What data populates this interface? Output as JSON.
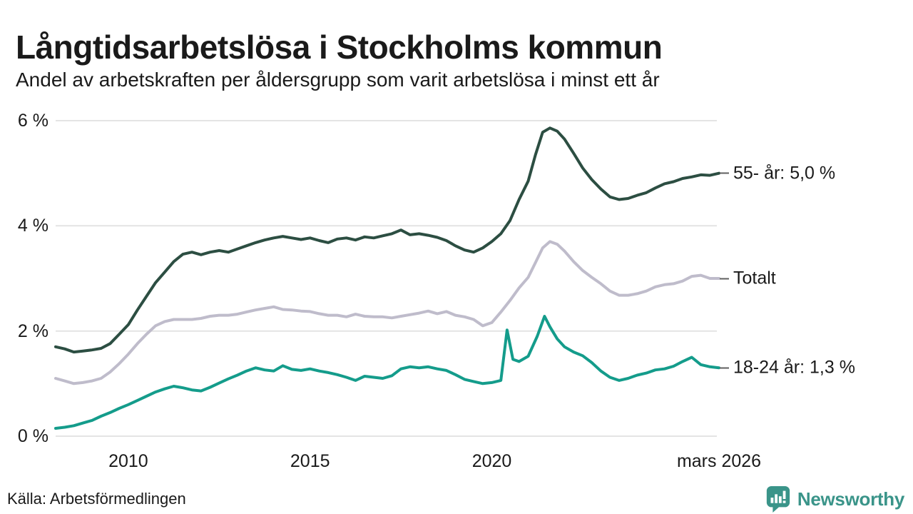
{
  "header": {
    "title": "Långtidsarbetslösa i Stockholms kommun",
    "subtitle": "Andel av arbetskraften per åldersgrupp som varit arbetslösa i minst ett år"
  },
  "footer": {
    "source": "Källa: Arbetsförmedlingen",
    "brand": "Newsworthy"
  },
  "colors": {
    "grid": "#e4e4e4",
    "text": "#1a1a1a",
    "label_dash": "#5f5f5f",
    "brand_teal": "#3a9489"
  },
  "chart_data": {
    "type": "line",
    "title": "Långtidsarbetslösa i Stockholms kommun",
    "subtitle": "Andel av arbetskraften per åldersgrupp som varit arbetslösa i minst ett år",
    "unit": "%",
    "grid": true,
    "legend_position": "right-end-labels",
    "x_range": [
      2008,
      2026.25
    ],
    "y_range": [
      0,
      6
    ],
    "x_ticks": [
      {
        "label": "2010",
        "x": 2010
      },
      {
        "label": "2015",
        "x": 2015
      },
      {
        "label": "2020",
        "x": 2020
      },
      {
        "label": "mars 2026",
        "x": 2026.25
      }
    ],
    "y_ticks": [
      {
        "label": "0 %",
        "value": 0
      },
      {
        "label": "2 %",
        "value": 2
      },
      {
        "label": "4 %",
        "value": 4
      },
      {
        "label": "6 %",
        "value": 6
      }
    ],
    "series": [
      {
        "name": "55- år",
        "end_label": "55- år: 5,0 %",
        "end_value": 5.0,
        "color": "#2c4e42",
        "points": [
          [
            2008.0,
            1.7
          ],
          [
            2008.25,
            1.66
          ],
          [
            2008.5,
            1.6
          ],
          [
            2008.75,
            1.62
          ],
          [
            2009.0,
            1.64
          ],
          [
            2009.25,
            1.67
          ],
          [
            2009.5,
            1.76
          ],
          [
            2009.75,
            1.94
          ],
          [
            2010.0,
            2.12
          ],
          [
            2010.25,
            2.4
          ],
          [
            2010.5,
            2.66
          ],
          [
            2010.75,
            2.92
          ],
          [
            2011.0,
            3.12
          ],
          [
            2011.25,
            3.32
          ],
          [
            2011.5,
            3.46
          ],
          [
            2011.75,
            3.5
          ],
          [
            2012.0,
            3.45
          ],
          [
            2012.25,
            3.5
          ],
          [
            2012.5,
            3.53
          ],
          [
            2012.75,
            3.5
          ],
          [
            2013.0,
            3.56
          ],
          [
            2013.25,
            3.62
          ],
          [
            2013.5,
            3.68
          ],
          [
            2013.75,
            3.73
          ],
          [
            2014.0,
            3.77
          ],
          [
            2014.25,
            3.8
          ],
          [
            2014.5,
            3.77
          ],
          [
            2014.75,
            3.74
          ],
          [
            2015.0,
            3.77
          ],
          [
            2015.25,
            3.72
          ],
          [
            2015.5,
            3.68
          ],
          [
            2015.75,
            3.75
          ],
          [
            2016.0,
            3.77
          ],
          [
            2016.25,
            3.73
          ],
          [
            2016.5,
            3.79
          ],
          [
            2016.75,
            3.77
          ],
          [
            2017.0,
            3.81
          ],
          [
            2017.25,
            3.85
          ],
          [
            2017.5,
            3.92
          ],
          [
            2017.75,
            3.83
          ],
          [
            2018.0,
            3.85
          ],
          [
            2018.25,
            3.82
          ],
          [
            2018.5,
            3.78
          ],
          [
            2018.75,
            3.72
          ],
          [
            2019.0,
            3.62
          ],
          [
            2019.25,
            3.54
          ],
          [
            2019.5,
            3.5
          ],
          [
            2019.75,
            3.58
          ],
          [
            2020.0,
            3.7
          ],
          [
            2020.25,
            3.85
          ],
          [
            2020.5,
            4.1
          ],
          [
            2020.75,
            4.5
          ],
          [
            2021.0,
            4.85
          ],
          [
            2021.2,
            5.35
          ],
          [
            2021.4,
            5.78
          ],
          [
            2021.6,
            5.86
          ],
          [
            2021.8,
            5.8
          ],
          [
            2022.0,
            5.65
          ],
          [
            2022.25,
            5.38
          ],
          [
            2022.5,
            5.1
          ],
          [
            2022.75,
            4.88
          ],
          [
            2023.0,
            4.7
          ],
          [
            2023.25,
            4.55
          ],
          [
            2023.5,
            4.5
          ],
          [
            2023.75,
            4.52
          ],
          [
            2024.0,
            4.58
          ],
          [
            2024.25,
            4.63
          ],
          [
            2024.5,
            4.72
          ],
          [
            2024.75,
            4.8
          ],
          [
            2025.0,
            4.84
          ],
          [
            2025.25,
            4.9
          ],
          [
            2025.5,
            4.93
          ],
          [
            2025.75,
            4.97
          ],
          [
            2026.0,
            4.96
          ],
          [
            2026.25,
            5.0
          ]
        ]
      },
      {
        "name": "Totalt",
        "end_label": "Totalt",
        "end_value": 3.0,
        "color": "#bfbccb",
        "points": [
          [
            2008.0,
            1.1
          ],
          [
            2008.25,
            1.05
          ],
          [
            2008.5,
            1.0
          ],
          [
            2008.75,
            1.02
          ],
          [
            2009.0,
            1.05
          ],
          [
            2009.25,
            1.1
          ],
          [
            2009.5,
            1.22
          ],
          [
            2009.75,
            1.38
          ],
          [
            2010.0,
            1.56
          ],
          [
            2010.25,
            1.76
          ],
          [
            2010.5,
            1.94
          ],
          [
            2010.75,
            2.1
          ],
          [
            2011.0,
            2.18
          ],
          [
            2011.25,
            2.22
          ],
          [
            2011.5,
            2.22
          ],
          [
            2011.75,
            2.22
          ],
          [
            2012.0,
            2.24
          ],
          [
            2012.25,
            2.28
          ],
          [
            2012.5,
            2.3
          ],
          [
            2012.75,
            2.3
          ],
          [
            2013.0,
            2.32
          ],
          [
            2013.25,
            2.36
          ],
          [
            2013.5,
            2.4
          ],
          [
            2013.75,
            2.43
          ],
          [
            2014.0,
            2.46
          ],
          [
            2014.25,
            2.41
          ],
          [
            2014.5,
            2.4
          ],
          [
            2014.75,
            2.38
          ],
          [
            2015.0,
            2.37
          ],
          [
            2015.25,
            2.33
          ],
          [
            2015.5,
            2.3
          ],
          [
            2015.75,
            2.3
          ],
          [
            2016.0,
            2.27
          ],
          [
            2016.25,
            2.32
          ],
          [
            2016.5,
            2.28
          ],
          [
            2016.75,
            2.27
          ],
          [
            2017.0,
            2.27
          ],
          [
            2017.25,
            2.25
          ],
          [
            2017.5,
            2.28
          ],
          [
            2017.75,
            2.31
          ],
          [
            2018.0,
            2.34
          ],
          [
            2018.25,
            2.38
          ],
          [
            2018.5,
            2.33
          ],
          [
            2018.75,
            2.37
          ],
          [
            2019.0,
            2.3
          ],
          [
            2019.25,
            2.27
          ],
          [
            2019.5,
            2.22
          ],
          [
            2019.75,
            2.1
          ],
          [
            2020.0,
            2.16
          ],
          [
            2020.25,
            2.36
          ],
          [
            2020.5,
            2.58
          ],
          [
            2020.75,
            2.82
          ],
          [
            2021.0,
            3.02
          ],
          [
            2021.2,
            3.3
          ],
          [
            2021.4,
            3.58
          ],
          [
            2021.6,
            3.7
          ],
          [
            2021.8,
            3.65
          ],
          [
            2022.0,
            3.52
          ],
          [
            2022.25,
            3.32
          ],
          [
            2022.5,
            3.15
          ],
          [
            2022.75,
            3.02
          ],
          [
            2023.0,
            2.9
          ],
          [
            2023.25,
            2.76
          ],
          [
            2023.5,
            2.68
          ],
          [
            2023.75,
            2.68
          ],
          [
            2024.0,
            2.71
          ],
          [
            2024.25,
            2.76
          ],
          [
            2024.5,
            2.84
          ],
          [
            2024.75,
            2.88
          ],
          [
            2025.0,
            2.9
          ],
          [
            2025.25,
            2.95
          ],
          [
            2025.5,
            3.04
          ],
          [
            2025.75,
            3.06
          ],
          [
            2026.0,
            3.0
          ],
          [
            2026.25,
            3.0
          ]
        ]
      },
      {
        "name": "18-24 år",
        "end_label": "18-24 år: 1,3 %",
        "end_value": 1.3,
        "color": "#149c8b",
        "points": [
          [
            2008.0,
            0.15
          ],
          [
            2008.25,
            0.17
          ],
          [
            2008.5,
            0.2
          ],
          [
            2008.75,
            0.25
          ],
          [
            2009.0,
            0.3
          ],
          [
            2009.25,
            0.38
          ],
          [
            2009.5,
            0.45
          ],
          [
            2009.75,
            0.53
          ],
          [
            2010.0,
            0.6
          ],
          [
            2010.25,
            0.68
          ],
          [
            2010.5,
            0.76
          ],
          [
            2010.75,
            0.84
          ],
          [
            2011.0,
            0.9
          ],
          [
            2011.25,
            0.95
          ],
          [
            2011.5,
            0.92
          ],
          [
            2011.75,
            0.88
          ],
          [
            2012.0,
            0.86
          ],
          [
            2012.25,
            0.93
          ],
          [
            2012.5,
            1.01
          ],
          [
            2012.75,
            1.09
          ],
          [
            2013.0,
            1.16
          ],
          [
            2013.25,
            1.24
          ],
          [
            2013.5,
            1.3
          ],
          [
            2013.75,
            1.26
          ],
          [
            2014.0,
            1.24
          ],
          [
            2014.25,
            1.34
          ],
          [
            2014.5,
            1.27
          ],
          [
            2014.75,
            1.25
          ],
          [
            2015.0,
            1.28
          ],
          [
            2015.25,
            1.24
          ],
          [
            2015.5,
            1.21
          ],
          [
            2015.75,
            1.17
          ],
          [
            2016.0,
            1.12
          ],
          [
            2016.25,
            1.06
          ],
          [
            2016.5,
            1.14
          ],
          [
            2016.75,
            1.12
          ],
          [
            2017.0,
            1.1
          ],
          [
            2017.25,
            1.15
          ],
          [
            2017.5,
            1.28
          ],
          [
            2017.75,
            1.32
          ],
          [
            2018.0,
            1.3
          ],
          [
            2018.25,
            1.32
          ],
          [
            2018.5,
            1.28
          ],
          [
            2018.75,
            1.25
          ],
          [
            2019.0,
            1.17
          ],
          [
            2019.25,
            1.08
          ],
          [
            2019.5,
            1.04
          ],
          [
            2019.75,
            1.0
          ],
          [
            2020.0,
            1.02
          ],
          [
            2020.25,
            1.06
          ],
          [
            2020.42,
            2.02
          ],
          [
            2020.58,
            1.46
          ],
          [
            2020.75,
            1.42
          ],
          [
            2021.0,
            1.52
          ],
          [
            2021.25,
            1.9
          ],
          [
            2021.45,
            2.28
          ],
          [
            2021.6,
            2.08
          ],
          [
            2021.8,
            1.85
          ],
          [
            2022.0,
            1.7
          ],
          [
            2022.25,
            1.6
          ],
          [
            2022.5,
            1.53
          ],
          [
            2022.75,
            1.4
          ],
          [
            2023.0,
            1.24
          ],
          [
            2023.25,
            1.12
          ],
          [
            2023.5,
            1.06
          ],
          [
            2023.75,
            1.1
          ],
          [
            2024.0,
            1.16
          ],
          [
            2024.25,
            1.2
          ],
          [
            2024.5,
            1.26
          ],
          [
            2024.75,
            1.28
          ],
          [
            2025.0,
            1.33
          ],
          [
            2025.25,
            1.42
          ],
          [
            2025.5,
            1.5
          ],
          [
            2025.75,
            1.36
          ],
          [
            2026.0,
            1.32
          ],
          [
            2026.25,
            1.3
          ]
        ]
      }
    ]
  }
}
